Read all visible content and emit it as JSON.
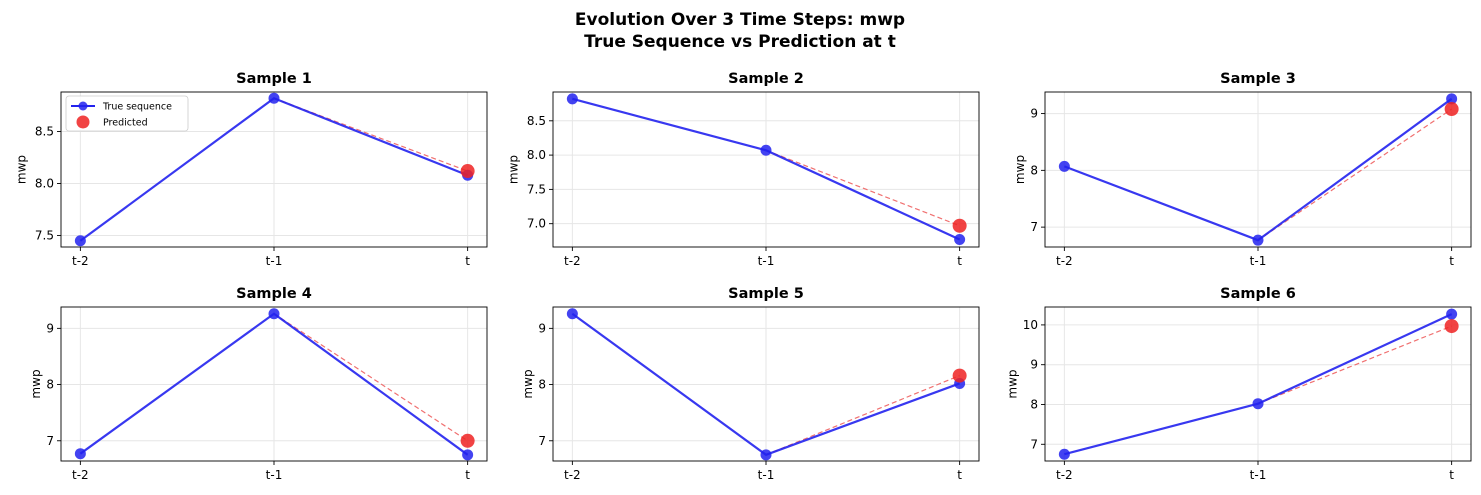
{
  "figure": {
    "title_line1": "Evolution Over 3 Time Steps: mwp",
    "title_line2": "True Sequence vs Prediction at t"
  },
  "legend": {
    "true_label": "True sequence",
    "pred_label": "Predicted"
  },
  "colors": {
    "true": "#2222ee",
    "pred": "#ee2222",
    "dashed": "#f07070",
    "grid": "#e6e6e6"
  },
  "chart_data": [
    {
      "type": "line",
      "title": "Sample 1",
      "ylabel": "mwp",
      "categories": [
        "t-2",
        "t-1",
        "t"
      ],
      "ylim": [
        7.39,
        8.88
      ],
      "yticks": [
        7.5,
        8.0,
        8.5
      ],
      "ytick_labels": [
        "7.5",
        "8.0",
        "8.5"
      ],
      "series": [
        {
          "name": "True sequence",
          "values": [
            7.45,
            8.82,
            8.08
          ]
        },
        {
          "name": "Predicted",
          "values": [
            null,
            null,
            8.12
          ]
        }
      ],
      "legend": "upper left"
    },
    {
      "type": "line",
      "title": "Sample 2",
      "ylabel": "mwp",
      "categories": [
        "t-2",
        "t-1",
        "t"
      ],
      "ylim": [
        6.66,
        8.92
      ],
      "yticks": [
        7.0,
        7.5,
        8.0,
        8.5
      ],
      "ytick_labels": [
        "7.0",
        "7.5",
        "8.0",
        "8.5"
      ],
      "series": [
        {
          "name": "True sequence",
          "values": [
            8.82,
            8.07,
            6.77
          ]
        },
        {
          "name": "Predicted",
          "values": [
            null,
            null,
            6.97
          ]
        }
      ]
    },
    {
      "type": "line",
      "title": "Sample 3",
      "ylabel": "mwp",
      "categories": [
        "t-2",
        "t-1",
        "t"
      ],
      "ylim": [
        6.65,
        9.38
      ],
      "yticks": [
        7,
        8,
        9
      ],
      "ytick_labels": [
        "7",
        "8",
        "9"
      ],
      "series": [
        {
          "name": "True sequence",
          "values": [
            8.07,
            6.77,
            9.26
          ]
        },
        {
          "name": "Predicted",
          "values": [
            null,
            null,
            9.08
          ]
        }
      ]
    },
    {
      "type": "line",
      "title": "Sample 4",
      "ylabel": "mwp",
      "categories": [
        "t-2",
        "t-1",
        "t"
      ],
      "ylim": [
        6.64,
        9.38
      ],
      "yticks": [
        7,
        8,
        9
      ],
      "ytick_labels": [
        "7",
        "8",
        "9"
      ],
      "series": [
        {
          "name": "True sequence",
          "values": [
            6.77,
            9.26,
            6.75
          ]
        },
        {
          "name": "Predicted",
          "values": [
            null,
            null,
            7.0
          ]
        }
      ]
    },
    {
      "type": "line",
      "title": "Sample 5",
      "ylabel": "mwp",
      "categories": [
        "t-2",
        "t-1",
        "t"
      ],
      "ylim": [
        6.64,
        9.38
      ],
      "yticks": [
        7,
        8,
        9
      ],
      "ytick_labels": [
        "7",
        "8",
        "9"
      ],
      "series": [
        {
          "name": "True sequence",
          "values": [
            9.26,
            6.75,
            8.02
          ]
        },
        {
          "name": "Predicted",
          "values": [
            null,
            null,
            8.16
          ]
        }
      ]
    },
    {
      "type": "line",
      "title": "Sample 6",
      "ylabel": "mwp",
      "categories": [
        "t-2",
        "t-1",
        "t"
      ],
      "ylim": [
        6.58,
        10.45
      ],
      "yticks": [
        7,
        8,
        9,
        10
      ],
      "ytick_labels": [
        "7",
        "8",
        "9",
        "10"
      ],
      "series": [
        {
          "name": "True sequence",
          "values": [
            6.75,
            8.02,
            10.27
          ]
        },
        {
          "name": "Predicted",
          "values": [
            null,
            null,
            9.97
          ]
        }
      ]
    }
  ]
}
